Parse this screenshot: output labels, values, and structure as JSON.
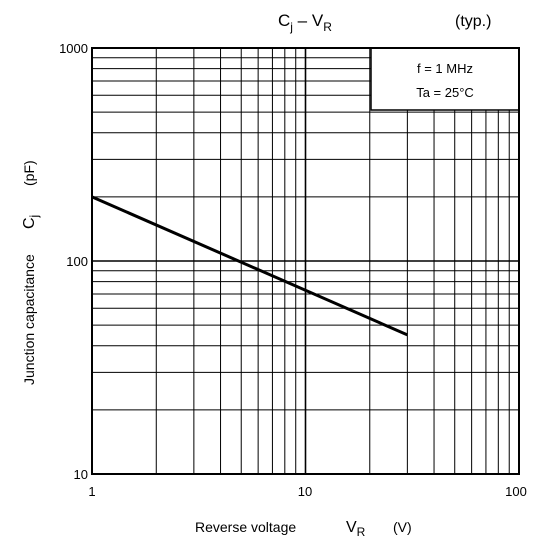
{
  "chart_data": {
    "type": "line",
    "title_main": "C",
    "title_sub": "j",
    "title_mid": " – V",
    "title_sub2": "R",
    "title_note": "(typ.)",
    "xlabel": "Reverse voltage",
    "xlabel_sym": "V",
    "xlabel_sub": "R",
    "xlabel_unit": "(V)",
    "ylabel": "Junction capacitance",
    "ylabel_sym": "C",
    "ylabel_sub": "j",
    "ylabel_unit": "(pF)",
    "x_scale": "log",
    "y_scale": "log",
    "xlim": [
      1,
      100
    ],
    "ylim": [
      10,
      1000
    ],
    "x_ticks": [
      "1",
      "10",
      "100"
    ],
    "y_ticks": [
      "1000",
      "100",
      "10"
    ],
    "grid": true,
    "legend_placement": "top-right",
    "conditions": [
      "f = 1 MHz",
      "Ta = 25°C"
    ],
    "series": [
      {
        "x": [
          1,
          30
        ],
        "y": [
          200,
          45
        ]
      }
    ]
  }
}
